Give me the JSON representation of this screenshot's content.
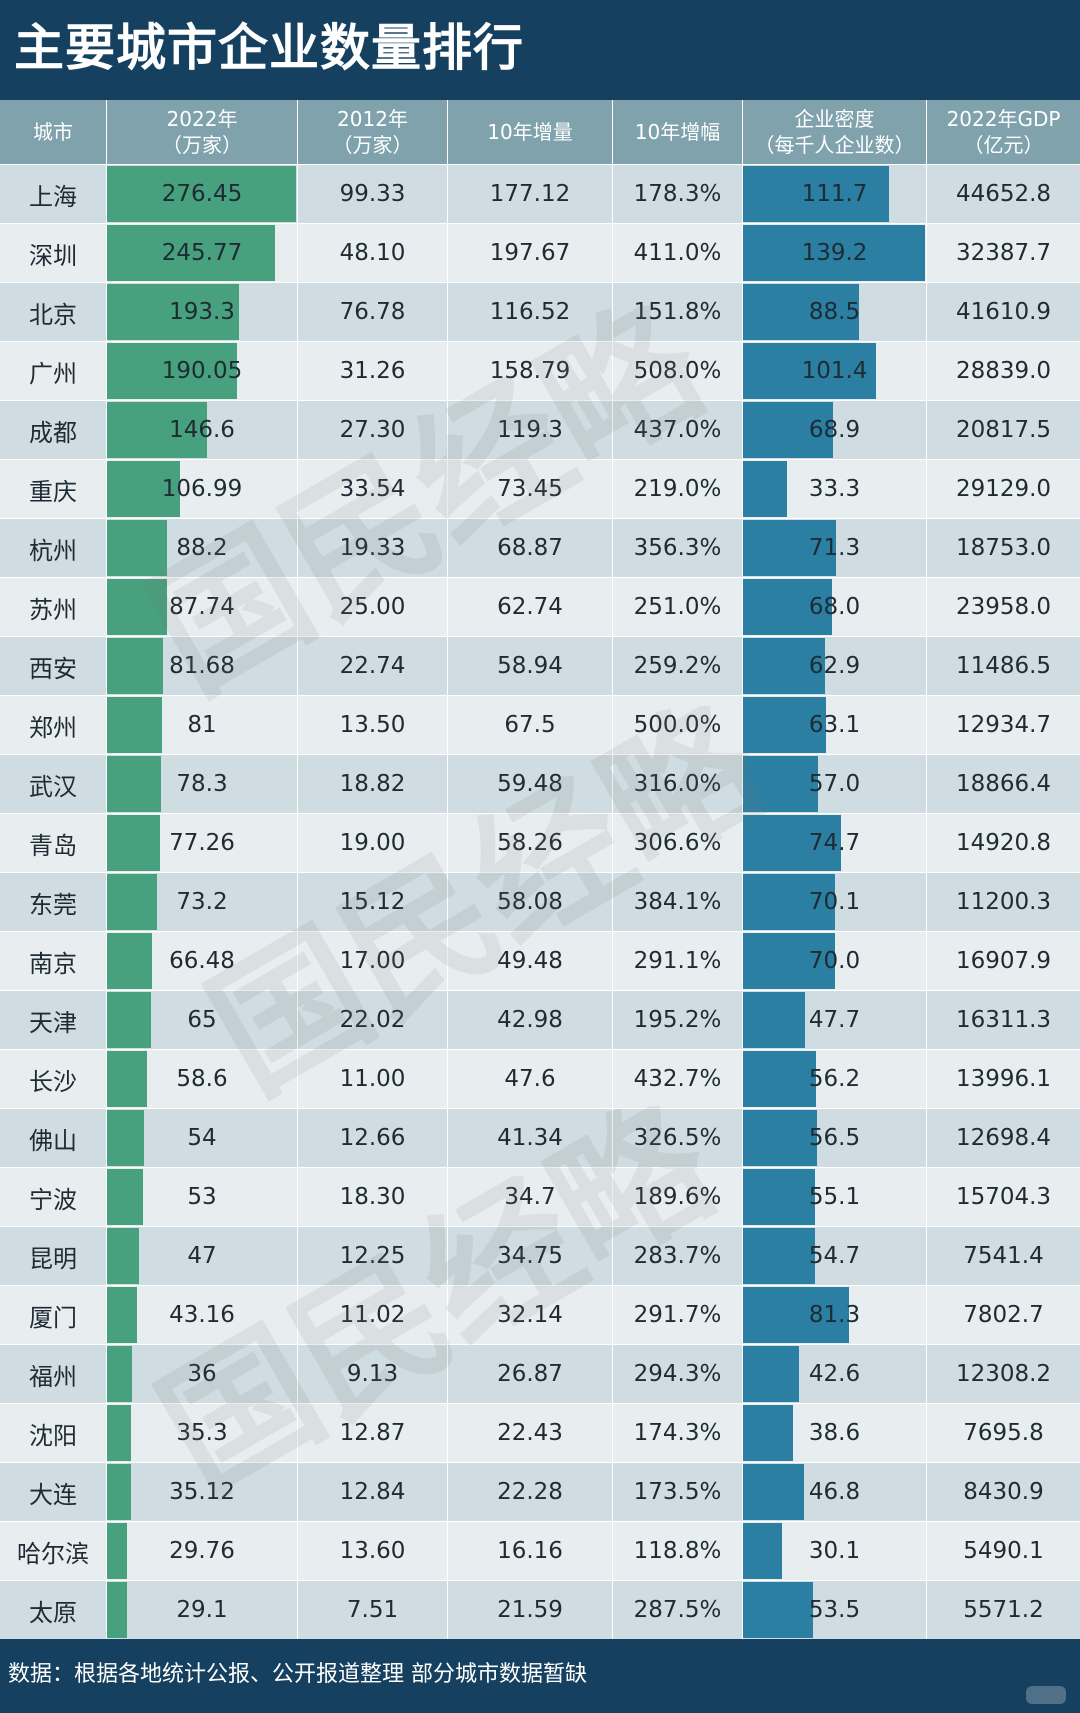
{
  "title": "主要城市企业数量排行",
  "footer": "数据：根据各地统计公报、公开报道整理 部分城市数据暂缺",
  "watermark": "国民经略",
  "colors": {
    "background": "#15405f",
    "header_bg": "#7fa2ad",
    "row_odd": "#cfdce1",
    "row_even": "#e8eef0",
    "bar_2022": "#47a07e",
    "bar_density": "#2a7fa3"
  },
  "chart_data": {
    "type": "table",
    "columns": [
      {
        "key": "city",
        "label_lines": [
          "城市"
        ]
      },
      {
        "key": "y2022",
        "label_lines": [
          "2022年",
          "（万家）"
        ]
      },
      {
        "key": "y2012",
        "label_lines": [
          "2012年",
          "（万家）"
        ]
      },
      {
        "key": "increase",
        "label_lines": [
          "10年增量"
        ]
      },
      {
        "key": "growth",
        "label_lines": [
          "10年增幅"
        ]
      },
      {
        "key": "density",
        "label_lines": [
          "企业密度",
          "（每千人企业数）"
        ]
      },
      {
        "key": "gdp",
        "label_lines": [
          "2022年GDP",
          "（亿元）"
        ]
      }
    ],
    "bar_columns": {
      "y2022": [
        0,
        276.45
      ],
      "density": [
        0,
        139.2
      ]
    },
    "rows": [
      {
        "city": "上海",
        "y2022": "276.45",
        "y2012": "99.33",
        "increase": "177.12",
        "growth": "178.3%",
        "density": "111.7",
        "gdp": "44652.8"
      },
      {
        "city": "深圳",
        "y2022": "245.77",
        "y2012": "48.10",
        "increase": "197.67",
        "growth": "411.0%",
        "density": "139.2",
        "gdp": "32387.7"
      },
      {
        "city": "北京",
        "y2022": "193.3",
        "y2012": "76.78",
        "increase": "116.52",
        "growth": "151.8%",
        "density": "88.5",
        "gdp": "41610.9"
      },
      {
        "city": "广州",
        "y2022": "190.05",
        "y2012": "31.26",
        "increase": "158.79",
        "growth": "508.0%",
        "density": "101.4",
        "gdp": "28839.0"
      },
      {
        "city": "成都",
        "y2022": "146.6",
        "y2012": "27.30",
        "increase": "119.3",
        "growth": "437.0%",
        "density": "68.9",
        "gdp": "20817.5"
      },
      {
        "city": "重庆",
        "y2022": "106.99",
        "y2012": "33.54",
        "increase": "73.45",
        "growth": "219.0%",
        "density": "33.3",
        "gdp": "29129.0"
      },
      {
        "city": "杭州",
        "y2022": "88.2",
        "y2012": "19.33",
        "increase": "68.87",
        "growth": "356.3%",
        "density": "71.3",
        "gdp": "18753.0"
      },
      {
        "city": "苏州",
        "y2022": "87.74",
        "y2012": "25.00",
        "increase": "62.74",
        "growth": "251.0%",
        "density": "68.0",
        "gdp": "23958.0"
      },
      {
        "city": "西安",
        "y2022": "81.68",
        "y2012": "22.74",
        "increase": "58.94",
        "growth": "259.2%",
        "density": "62.9",
        "gdp": "11486.5"
      },
      {
        "city": "郑州",
        "y2022": "81",
        "y2012": "13.50",
        "increase": "67.5",
        "growth": "500.0%",
        "density": "63.1",
        "gdp": "12934.7"
      },
      {
        "city": "武汉",
        "y2022": "78.3",
        "y2012": "18.82",
        "increase": "59.48",
        "growth": "316.0%",
        "density": "57.0",
        "gdp": "18866.4"
      },
      {
        "city": "青岛",
        "y2022": "77.26",
        "y2012": "19.00",
        "increase": "58.26",
        "growth": "306.6%",
        "density": "74.7",
        "gdp": "14920.8"
      },
      {
        "city": "东莞",
        "y2022": "73.2",
        "y2012": "15.12",
        "increase": "58.08",
        "growth": "384.1%",
        "density": "70.1",
        "gdp": "11200.3"
      },
      {
        "city": "南京",
        "y2022": "66.48",
        "y2012": "17.00",
        "increase": "49.48",
        "growth": "291.1%",
        "density": "70.0",
        "gdp": "16907.9"
      },
      {
        "city": "天津",
        "y2022": "65",
        "y2012": "22.02",
        "increase": "42.98",
        "growth": "195.2%",
        "density": "47.7",
        "gdp": "16311.3"
      },
      {
        "city": "长沙",
        "y2022": "58.6",
        "y2012": "11.00",
        "increase": "47.6",
        "growth": "432.7%",
        "density": "56.2",
        "gdp": "13996.1"
      },
      {
        "city": "佛山",
        "y2022": "54",
        "y2012": "12.66",
        "increase": "41.34",
        "growth": "326.5%",
        "density": "56.5",
        "gdp": "12698.4"
      },
      {
        "city": "宁波",
        "y2022": "53",
        "y2012": "18.30",
        "increase": "34.7",
        "growth": "189.6%",
        "density": "55.1",
        "gdp": "15704.3"
      },
      {
        "city": "昆明",
        "y2022": "47",
        "y2012": "12.25",
        "increase": "34.75",
        "growth": "283.7%",
        "density": "54.7",
        "gdp": "7541.4"
      },
      {
        "city": "厦门",
        "y2022": "43.16",
        "y2012": "11.02",
        "increase": "32.14",
        "growth": "291.7%",
        "density": "81.3",
        "gdp": "7802.7"
      },
      {
        "city": "福州",
        "y2022": "36",
        "y2012": "9.13",
        "increase": "26.87",
        "growth": "294.3%",
        "density": "42.6",
        "gdp": "12308.2"
      },
      {
        "city": "沈阳",
        "y2022": "35.3",
        "y2012": "12.87",
        "increase": "22.43",
        "growth": "174.3%",
        "density": "38.6",
        "gdp": "7695.8"
      },
      {
        "city": "大连",
        "y2022": "35.12",
        "y2012": "12.84",
        "increase": "22.28",
        "growth": "173.5%",
        "density": "46.8",
        "gdp": "8430.9"
      },
      {
        "city": "哈尔滨",
        "y2022": "29.76",
        "y2012": "13.60",
        "increase": "16.16",
        "growth": "118.8%",
        "density": "30.1",
        "gdp": "5490.1"
      },
      {
        "city": "太原",
        "y2022": "29.1",
        "y2012": "7.51",
        "increase": "21.59",
        "growth": "287.5%",
        "density": "53.5",
        "gdp": "5571.2"
      }
    ]
  }
}
